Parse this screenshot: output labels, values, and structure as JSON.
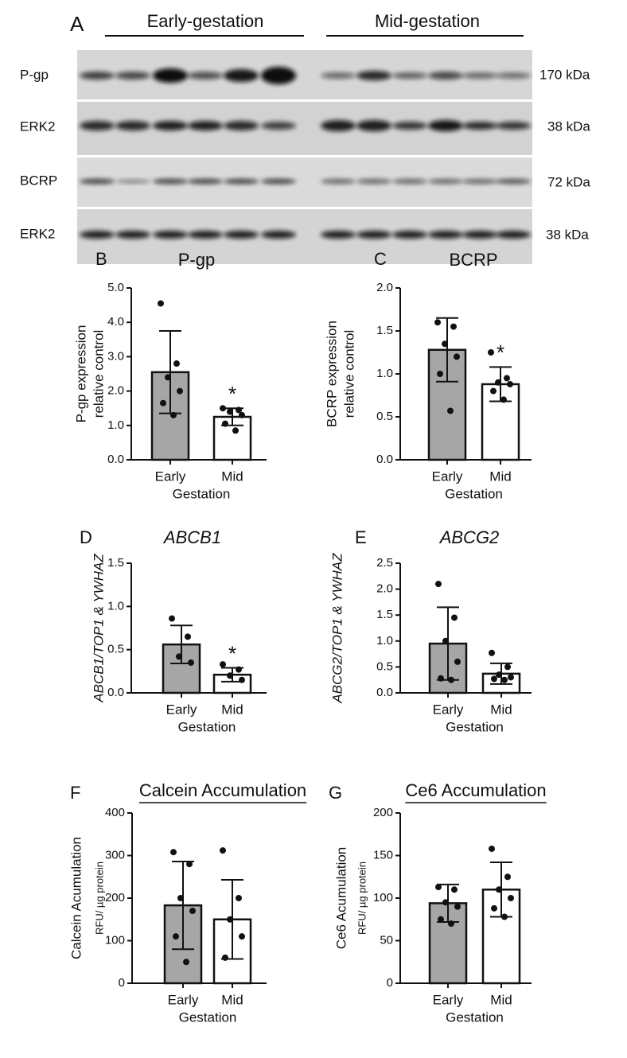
{
  "blot": {
    "panel": "A",
    "groups": [
      "Early-gestation",
      "Mid-gestation"
    ],
    "rows": [
      {
        "label": "P-gp",
        "size": "170 kDa"
      },
      {
        "label": "ERK2",
        "size": "38 kDa"
      },
      {
        "label": "BCRP",
        "size": "72 kDa"
      },
      {
        "label": "ERK2",
        "size": "38 kDa"
      }
    ]
  },
  "chart_data": [
    {
      "type": "bar",
      "panel": "B",
      "title": "P-gp",
      "title_italic": false,
      "title_underline": false,
      "y_label": [
        "P-gp expression",
        "relative control"
      ],
      "x_label": "Gestation",
      "categories": [
        "Early",
        "Mid"
      ],
      "values": [
        2.55,
        1.25
      ],
      "errors": [
        1.2,
        0.25
      ],
      "colors": [
        "#a6a6a6",
        "#ffffff"
      ],
      "points": [
        [
          4.55,
          2.8,
          2.4,
          2.0,
          1.65,
          1.3
        ],
        [
          1.5,
          1.45,
          1.4,
          1.3,
          1.05,
          0.85
        ]
      ],
      "significance": [
        null,
        "*"
      ],
      "ylim": [
        0,
        5
      ],
      "yticks": [
        {
          "value": 0,
          "label": "0.0"
        },
        {
          "value": 1,
          "label": "1.0"
        },
        {
          "value": 2,
          "label": "2.0"
        },
        {
          "value": 3,
          "label": "3.0"
        },
        {
          "value": 4,
          "label": "4.0"
        },
        {
          "value": 5,
          "label": "5.0"
        }
      ]
    },
    {
      "type": "bar",
      "panel": "C",
      "title": "BCRP",
      "title_italic": false,
      "title_underline": false,
      "y_label": [
        "BCRP expression",
        "relative control"
      ],
      "x_label": "Gestation",
      "categories": [
        "Early",
        "Mid"
      ],
      "values": [
        1.28,
        0.88
      ],
      "errors": [
        0.37,
        0.2
      ],
      "colors": [
        "#a6a6a6",
        "#ffffff"
      ],
      "points": [
        [
          1.6,
          1.55,
          1.35,
          1.2,
          1.0,
          0.57
        ],
        [
          1.25,
          0.95,
          0.9,
          0.88,
          0.8,
          0.7
        ]
      ],
      "significance": [
        null,
        "*"
      ],
      "ylim": [
        0,
        2
      ],
      "yticks": [
        {
          "value": 0,
          "label": "0.0"
        },
        {
          "value": 0.5,
          "label": "0.5"
        },
        {
          "value": 1,
          "label": "1.0"
        },
        {
          "value": 1.5,
          "label": "1.5"
        },
        {
          "value": 2,
          "label": "2.0"
        }
      ]
    },
    {
      "type": "bar",
      "panel": "D",
      "title": "ABCB1",
      "title_italic": true,
      "title_underline": false,
      "y_label": [
        "ABCB1/TOP1 & YWHAZ"
      ],
      "x_label": "Gestation",
      "categories": [
        "Early",
        "Mid"
      ],
      "values": [
        0.56,
        0.21
      ],
      "errors": [
        0.22,
        0.08
      ],
      "colors": [
        "#a6a6a6",
        "#ffffff"
      ],
      "points": [
        [
          0.86,
          0.65,
          0.42,
          0.35
        ],
        [
          0.33,
          0.27,
          0.2,
          0.15
        ]
      ],
      "significance": [
        null,
        "*"
      ],
      "ylim": [
        0,
        1.5
      ],
      "yticks": [
        {
          "value": 0,
          "label": "0.0"
        },
        {
          "value": 0.5,
          "label": "0.5"
        },
        {
          "value": 1,
          "label": "1.0"
        },
        {
          "value": 1.5,
          "label": "1.5"
        }
      ]
    },
    {
      "type": "bar",
      "panel": "E",
      "title": "ABCG2",
      "title_italic": true,
      "title_underline": false,
      "y_label": [
        "ABCG2/TOP1 & YWHAZ"
      ],
      "x_label": "Gestation",
      "categories": [
        "Early",
        "Mid"
      ],
      "values": [
        0.95,
        0.37
      ],
      "errors": [
        0.7,
        0.2
      ],
      "colors": [
        "#a6a6a6",
        "#ffffff"
      ],
      "points": [
        [
          2.1,
          1.45,
          1.0,
          0.6,
          0.28,
          0.25
        ],
        [
          0.77,
          0.5,
          0.35,
          0.3,
          0.27,
          0.25
        ]
      ],
      "significance": [
        null,
        null
      ],
      "ylim": [
        0,
        2.5
      ],
      "yticks": [
        {
          "value": 0,
          "label": "0.0"
        },
        {
          "value": 0.5,
          "label": "0.5"
        },
        {
          "value": 1,
          "label": "1.0"
        },
        {
          "value": 1.5,
          "label": "1.5"
        },
        {
          "value": 2,
          "label": "2.0"
        },
        {
          "value": 2.5,
          "label": "2.5"
        }
      ]
    },
    {
      "type": "bar",
      "panel": "F",
      "title": "Calcein Accumulation",
      "title_italic": false,
      "title_underline": true,
      "y_label": [
        "Calcein Acumulation",
        "RFU/ µg protein"
      ],
      "x_label": "Gestation",
      "categories": [
        "Early",
        "Mid"
      ],
      "values": [
        183,
        150
      ],
      "errors": [
        103,
        93
      ],
      "colors": [
        "#a6a6a6",
        "#ffffff"
      ],
      "points": [
        [
          308,
          280,
          200,
          170,
          110,
          50
        ],
        [
          312,
          200,
          150,
          110,
          60
        ]
      ],
      "significance": [
        null,
        null
      ],
      "ylim": [
        0,
        400
      ],
      "yticks": [
        0,
        100,
        200,
        300,
        400
      ]
    },
    {
      "type": "bar",
      "panel": "G",
      "title": "Ce6 Accumulation",
      "title_italic": false,
      "title_underline": true,
      "y_label": [
        "Ce6 Acumulation",
        "RFU/ µg protein"
      ],
      "x_label": "Gestation",
      "categories": [
        "Early",
        "Mid"
      ],
      "values": [
        94,
        110
      ],
      "errors": [
        22,
        32
      ],
      "colors": [
        "#a6a6a6",
        "#ffffff"
      ],
      "points": [
        [
          113,
          110,
          95,
          90,
          75,
          70
        ],
        [
          158,
          125,
          110,
          100,
          88,
          78
        ]
      ],
      "significance": [
        null,
        null
      ],
      "ylim": [
        0,
        200
      ],
      "yticks": [
        0,
        50,
        100,
        150,
        200
      ]
    }
  ]
}
